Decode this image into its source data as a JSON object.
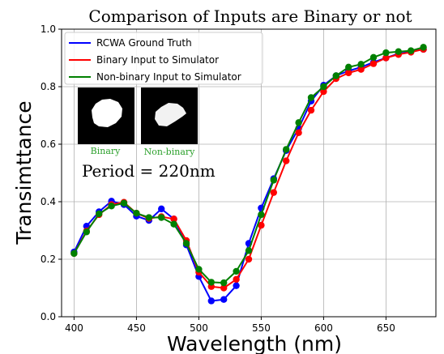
{
  "chart_data": {
    "type": "line",
    "title": "Comparison of Inputs are Binary or not",
    "xlabel": "Wavelength (nm)",
    "ylabel": "Transimttance",
    "xlim": [
      390,
      690
    ],
    "ylim": [
      0.0,
      1.0
    ],
    "xticks": [
      400,
      450,
      500,
      550,
      600,
      650
    ],
    "yticks": [
      0.0,
      0.2,
      0.4,
      0.6,
      0.8,
      1.0
    ],
    "xtick_labels": [
      "400",
      "450",
      "500",
      "550",
      "600",
      "650"
    ],
    "ytick_labels": [
      "0.0",
      "0.2",
      "0.4",
      "0.6",
      "0.8",
      "1.0"
    ],
    "grid": true,
    "legend_position": "top-left",
    "x": [
      400,
      410,
      420,
      430,
      440,
      450,
      460,
      470,
      480,
      490,
      500,
      510,
      520,
      530,
      540,
      550,
      560,
      570,
      580,
      590,
      600,
      610,
      620,
      630,
      640,
      650,
      660,
      670,
      680
    ],
    "series": [
      {
        "name": "RCWA Ground Truth",
        "color": "#0000ff",
        "values": [
          0.225,
          0.315,
          0.365,
          0.402,
          0.39,
          0.35,
          0.335,
          0.375,
          0.34,
          0.25,
          0.14,
          0.055,
          0.06,
          0.108,
          0.255,
          0.378,
          0.48,
          0.578,
          0.655,
          0.75,
          0.805,
          0.838,
          0.855,
          0.868,
          0.885,
          0.9,
          0.915,
          0.922,
          0.93
        ]
      },
      {
        "name": "Binary Input to Simulator",
        "color": "#ff0000",
        "values": [
          0.22,
          0.298,
          0.355,
          0.39,
          0.398,
          0.36,
          0.342,
          0.348,
          0.34,
          0.265,
          0.155,
          0.105,
          0.1,
          0.13,
          0.2,
          0.318,
          0.432,
          0.542,
          0.64,
          0.718,
          0.783,
          0.828,
          0.848,
          0.86,
          0.88,
          0.9,
          0.912,
          0.92,
          0.93
        ]
      },
      {
        "name": "Non-binary Input to Simulator",
        "color": "#008000",
        "values": [
          0.22,
          0.295,
          0.358,
          0.385,
          0.395,
          0.36,
          0.345,
          0.345,
          0.322,
          0.255,
          0.165,
          0.12,
          0.118,
          0.158,
          0.23,
          0.355,
          0.475,
          0.582,
          0.675,
          0.762,
          0.8,
          0.838,
          0.868,
          0.878,
          0.902,
          0.918,
          0.922,
          0.925,
          0.937
        ]
      }
    ],
    "annotations": {
      "binary_label": "Binary",
      "nonbinary_label": "Non-binary",
      "period_text": "Period = 220nm",
      "label_color": "#2ca02c"
    }
  }
}
